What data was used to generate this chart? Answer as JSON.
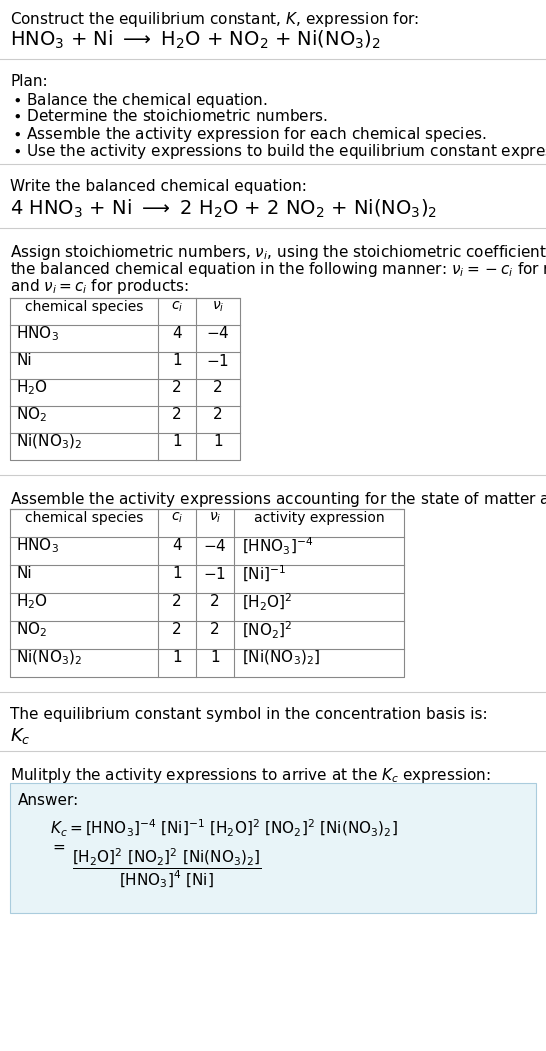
{
  "bg_color": "#ffffff",
  "answer_box_color": "#e8f4f8",
  "answer_box_edge": "#aaccdd",
  "separator_color": "#cccccc",
  "table_color": "#888888",
  "sections": [
    {
      "type": "header",
      "lines": [
        {
          "text": "Construct the equilibrium constant, $K$, expression for:",
          "fontsize": 11
        },
        {
          "text": "$\\mathrm{HNO_3}$ + Ni $\\longrightarrow$ $\\mathrm{H_2O}$ + $\\mathrm{NO_2}$ + $\\mathrm{Ni(NO_3)_2}$",
          "fontsize": 14
        }
      ]
    },
    {
      "type": "plan",
      "header": "Plan:",
      "items": [
        "\\textbullet  Balance the chemical equation.",
        "\\textbullet  Determine the stoichiometric numbers.",
        "\\textbullet  Assemble the activity expression for each chemical species.",
        "\\textbullet  Use the activity expressions to build the equilibrium constant expression."
      ]
    },
    {
      "type": "balanced",
      "header": "Write the balanced chemical equation:",
      "equation": "$4\\ \\mathrm{HNO_3}$ + Ni $\\longrightarrow$ $2\\ \\mathrm{H_2O}$ + $2\\ \\mathrm{NO_2}$ + $\\mathrm{Ni(NO_3)_2}$"
    },
    {
      "type": "stoich_text",
      "lines": [
        "Assign stoichiometric numbers, $\\nu_i$, using the stoichiometric coefficients, $c_i$, from",
        "the balanced chemical equation in the following manner: $\\nu_i = -c_i$ for reactants",
        "and $\\nu_i = c_i$ for products:"
      ]
    },
    {
      "type": "table1",
      "headers": [
        "chemical species",
        "$c_i$",
        "$\\nu_i$"
      ],
      "rows": [
        [
          "$\\mathrm{HNO_3}$",
          "4",
          "$-4$"
        ],
        [
          "Ni",
          "1",
          "$-1$"
        ],
        [
          "$\\mathrm{H_2O}$",
          "2",
          "2"
        ],
        [
          "$\\mathrm{NO_2}$",
          "2",
          "2"
        ],
        [
          "$\\mathrm{Ni(NO_3)_2}$",
          "1",
          "1"
        ]
      ]
    },
    {
      "type": "activity_text",
      "line": "Assemble the activity expressions accounting for the state of matter and $\\nu_i$:"
    },
    {
      "type": "table2",
      "headers": [
        "chemical species",
        "$c_i$",
        "$\\nu_i$",
        "activity expression"
      ],
      "rows": [
        [
          "$\\mathrm{HNO_3}$",
          "4",
          "$-4$",
          "$[\\mathrm{HNO_3}]^{-4}$"
        ],
        [
          "Ni",
          "1",
          "$-1$",
          "$[\\mathrm{Ni}]^{-1}$"
        ],
        [
          "$\\mathrm{H_2O}$",
          "2",
          "2",
          "$[\\mathrm{H_2O}]^{2}$"
        ],
        [
          "$\\mathrm{NO_2}$",
          "2",
          "2",
          "$[\\mathrm{NO_2}]^{2}$"
        ],
        [
          "$\\mathrm{Ni(NO_3)_2}$",
          "1",
          "1",
          "$[\\mathrm{Ni(NO_3)_2}]$"
        ]
      ]
    },
    {
      "type": "kc",
      "header": "The equilibrium constant symbol in the concentration basis is:",
      "symbol": "$K_c$"
    },
    {
      "type": "answer",
      "header": "Mulitply the activity expressions to arrive at the $K_c$ expression:",
      "answer_label": "Answer:",
      "line1": "$K_c = [\\mathrm{HNO_3}]^{-4}\\ [\\mathrm{Ni}]^{-1}\\ [\\mathrm{H_2O}]^{2}\\ [\\mathrm{NO_2}]^{2}\\ [\\mathrm{Ni(NO_3)_2}]$",
      "line2_eq": "$=$",
      "line2_num": "$[\\mathrm{H_2O}]^{2}\\ [\\mathrm{NO_2}]^{2}\\ [\\mathrm{Ni(NO_3)_2}]$",
      "line2_den": "$[\\mathrm{HNO_3}]^{4}\\ [\\mathrm{Ni}]$"
    }
  ]
}
